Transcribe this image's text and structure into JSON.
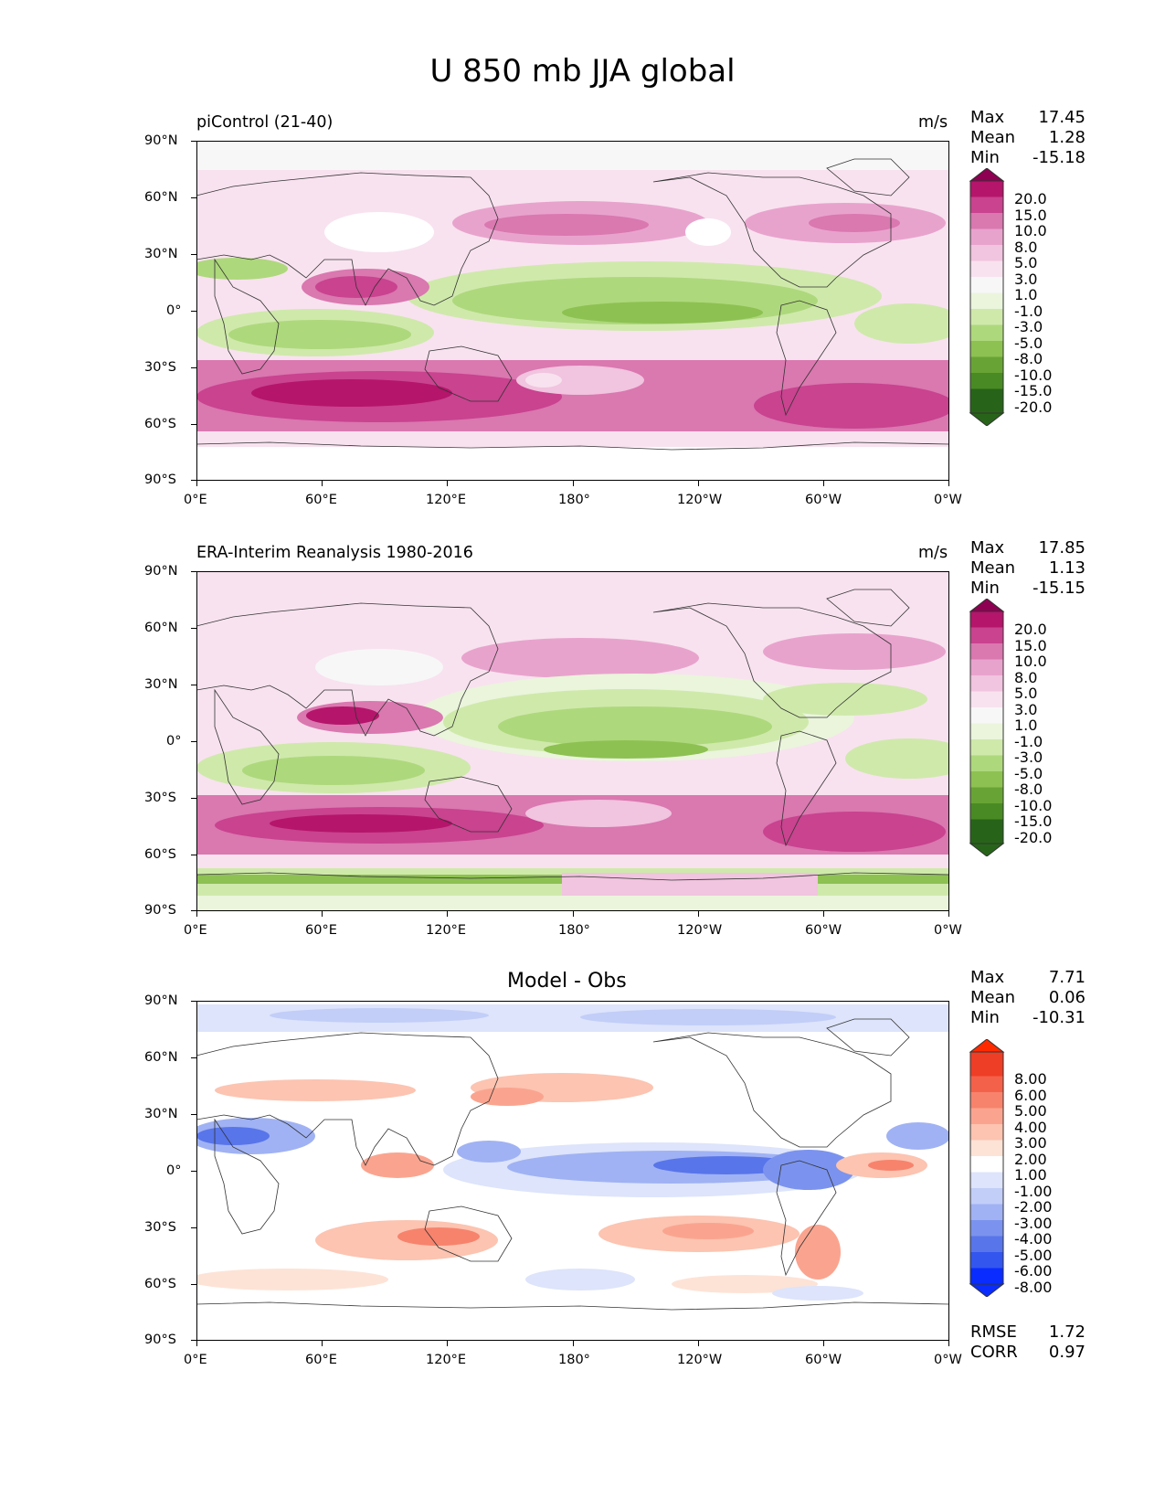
{
  "title": "U 850 mb JJA global",
  "axes": {
    "lat_labels": [
      "90°N",
      "60°N",
      "30°N",
      "0°",
      "30°S",
      "60°S",
      "90°S"
    ],
    "lon_labels": [
      "0°E",
      "60°E",
      "120°E",
      "180°",
      "120°W",
      "60°W",
      "0°W"
    ]
  },
  "stat_labels": {
    "max": "Max",
    "mean": "Mean",
    "min": "Min"
  },
  "panels": [
    {
      "left_title": "piControl (21-40)",
      "center_title": "",
      "units": "m/s",
      "stats": {
        "max": "17.45",
        "mean": "1.28",
        "min": "-15.18"
      },
      "colorbar": {
        "levels": [
          "20.0",
          "15.0",
          "10.0",
          "8.0",
          "5.0",
          "3.0",
          "1.0",
          "-1.0",
          "-3.0",
          "-5.0",
          "-8.0",
          "-10.0",
          "-15.0",
          "-20.0"
        ],
        "colors": [
          "#8e0152",
          "#b5156b",
          "#c9438f",
          "#da78b0",
          "#e8a3cd",
          "#f1c4df",
          "#f8e2ef",
          "#f7f7f7",
          "#eaf5dc",
          "#cfe9ab",
          "#aed87c",
          "#8dc152",
          "#68a435",
          "#4a8a24",
          "#276419"
        ]
      }
    },
    {
      "left_title": "ERA-Interim Reanalysis 1980-2016",
      "center_title": "",
      "units": "m/s",
      "stats": {
        "max": "17.85",
        "mean": "1.13",
        "min": "-15.15"
      },
      "colorbar": {
        "levels": [
          "20.0",
          "15.0",
          "10.0",
          "8.0",
          "5.0",
          "3.0",
          "1.0",
          "-1.0",
          "-3.0",
          "-5.0",
          "-8.0",
          "-10.0",
          "-15.0",
          "-20.0"
        ],
        "colors": [
          "#8e0152",
          "#b5156b",
          "#c9438f",
          "#da78b0",
          "#e8a3cd",
          "#f1c4df",
          "#f8e2ef",
          "#f7f7f7",
          "#eaf5dc",
          "#cfe9ab",
          "#aed87c",
          "#8dc152",
          "#68a435",
          "#4a8a24",
          "#276419"
        ]
      }
    },
    {
      "left_title": "",
      "center_title": "Model - Obs",
      "units": "",
      "stats": {
        "max": "7.71",
        "mean": "0.06",
        "min": "-10.31"
      },
      "extra_stats": {
        "rmse_label": "RMSE",
        "rmse": "1.72",
        "corr_label": "CORR",
        "corr": "0.97"
      },
      "colorbar": {
        "levels": [
          "8.00",
          "6.00",
          "5.00",
          "4.00",
          "3.00",
          "2.00",
          "1.00",
          "-1.00",
          "-2.00",
          "-3.00",
          "-4.00",
          "-5.00",
          "-6.00",
          "-8.00"
        ],
        "colors": [
          "#ff2a00",
          "#ef3e26",
          "#f4614a",
          "#f7836d",
          "#faa48f",
          "#fcc4b1",
          "#fde3d6",
          "#ffffff",
          "#dde4fb",
          "#c2cef8",
          "#a0b2f3",
          "#7b93ee",
          "#5875ea",
          "#3356ef",
          "#0a2cff"
        ]
      }
    }
  ]
}
